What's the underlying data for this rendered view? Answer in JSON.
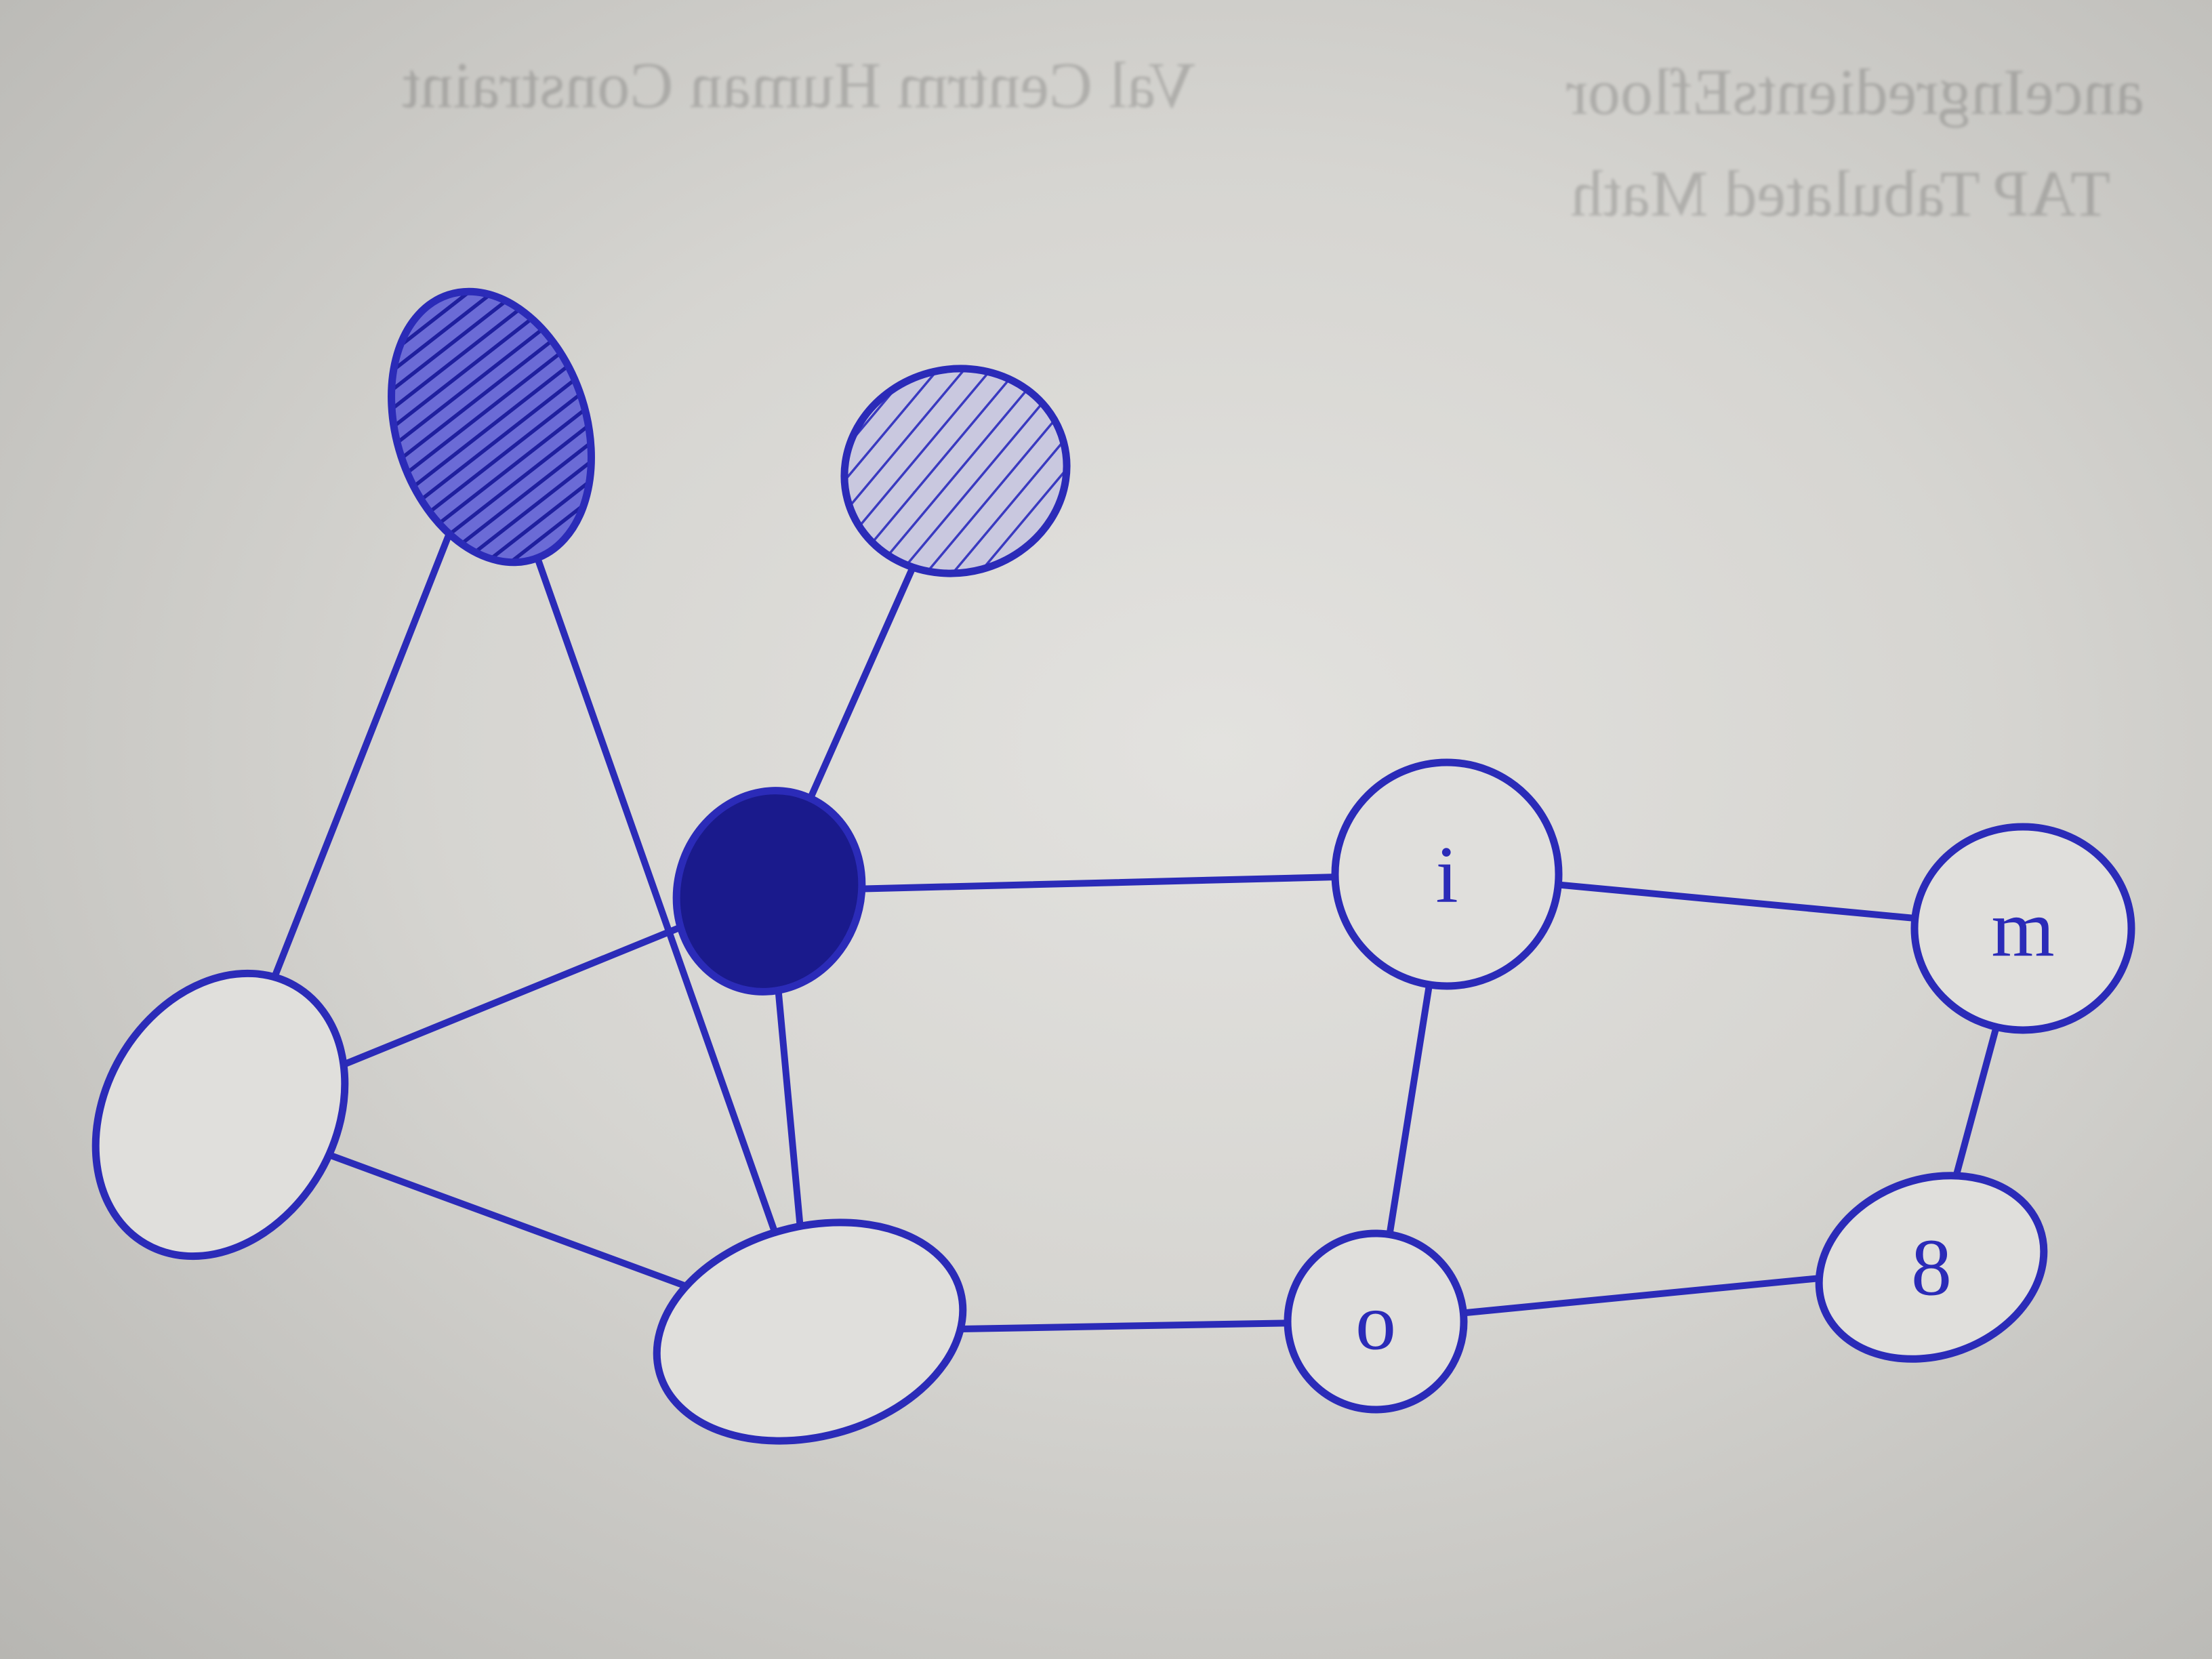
{
  "ink_color": "#2b2bb8",
  "fill_color": "#1a1a8c",
  "bleed_through": [
    "anceIngredientsEfloor",
    "Val Centrm Human Constraint",
    "TAP Tabulated Math"
  ],
  "nodes": [
    {
      "id": "A",
      "label": "",
      "style": "hatched-dense"
    },
    {
      "id": "B",
      "label": "",
      "style": "hatched-light"
    },
    {
      "id": "C",
      "label": "",
      "style": "filled"
    },
    {
      "id": "D",
      "label": "",
      "style": "empty"
    },
    {
      "id": "E",
      "label": "",
      "style": "empty"
    },
    {
      "id": "I",
      "label": "i",
      "style": "empty"
    },
    {
      "id": "M",
      "label": "m",
      "style": "empty"
    },
    {
      "id": "O",
      "label": "o",
      "style": "empty"
    },
    {
      "id": "8",
      "label": "8",
      "style": "empty"
    }
  ],
  "edges": [
    [
      "A",
      "D"
    ],
    [
      "A",
      "E"
    ],
    [
      "B",
      "C"
    ],
    [
      "C",
      "D"
    ],
    [
      "C",
      "E"
    ],
    [
      "C",
      "I"
    ],
    [
      "D",
      "E"
    ],
    [
      "E",
      "O"
    ],
    [
      "I",
      "M"
    ],
    [
      "I",
      "O"
    ],
    [
      "M",
      "8"
    ],
    [
      "O",
      "8"
    ]
  ]
}
